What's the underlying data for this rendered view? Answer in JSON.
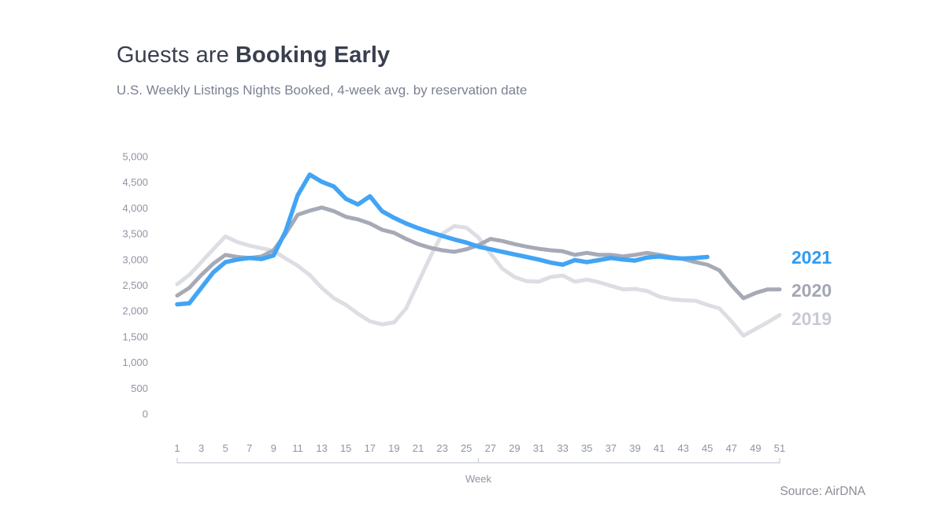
{
  "header": {
    "title_regular": "Guests are ",
    "title_bold": "Booking Early",
    "subtitle": "U.S. Weekly Listings Nights Booked, 4-week avg. by reservation date"
  },
  "source": "Source: AirDNA",
  "chart_data": {
    "type": "line",
    "title": "Guests are Booking Early",
    "subtitle": "U.S. Weekly Listings Nights Booked, 4-week avg. by reservation date",
    "xlabel": "Week",
    "ylabel": "",
    "xlim": [
      1,
      51
    ],
    "ylim": [
      0,
      5000
    ],
    "grid": false,
    "legend_position": "right",
    "x_ticks": [
      1,
      3,
      5,
      7,
      9,
      11,
      13,
      15,
      17,
      19,
      21,
      23,
      25,
      27,
      29,
      31,
      33,
      35,
      37,
      39,
      41,
      43,
      45,
      47,
      49,
      51
    ],
    "y_ticks": [
      {
        "v": 0,
        "label": "0"
      },
      {
        "v": 500,
        "label": "500"
      },
      {
        "v": 1000,
        "label": "1,000"
      },
      {
        "v": 1500,
        "label": "1,500"
      },
      {
        "v": 2000,
        "label": "2,000"
      },
      {
        "v": 2500,
        "label": "2,500"
      },
      {
        "v": 3000,
        "label": "3,000"
      },
      {
        "v": 3500,
        "label": "3,500"
      },
      {
        "v": 4000,
        "label": "4,000"
      },
      {
        "v": 4500,
        "label": "4,500"
      },
      {
        "v": 5000,
        "label": "5,000"
      }
    ],
    "legend": [
      {
        "label": "2021",
        "color": "#2d9cf4"
      },
      {
        "label": "2020",
        "color": "#a3a7b3"
      },
      {
        "label": "2019",
        "color": "#c8cbd4"
      }
    ],
    "series": [
      {
        "name": "2019",
        "color": "#dcdee4",
        "stroke_width": 5,
        "x_start": 1,
        "values": [
          2520,
          2700,
          2950,
          3200,
          3450,
          3340,
          3270,
          3220,
          3170,
          3020,
          2880,
          2700,
          2450,
          2250,
          2120,
          1950,
          1800,
          1740,
          1780,
          2050,
          2550,
          3050,
          3500,
          3650,
          3620,
          3430,
          3120,
          2820,
          2660,
          2580,
          2570,
          2660,
          2690,
          2570,
          2610,
          2560,
          2490,
          2420,
          2430,
          2390,
          2280,
          2230,
          2210,
          2200,
          2120,
          2050,
          1800,
          1520,
          1650,
          1780,
          1920
        ]
      },
      {
        "name": "2020",
        "color": "#a7aab6",
        "stroke_width": 5,
        "x_start": 1,
        "values": [
          2300,
          2450,
          2700,
          2920,
          3090,
          3050,
          3030,
          3060,
          3180,
          3500,
          3870,
          3950,
          4010,
          3940,
          3830,
          3780,
          3700,
          3580,
          3520,
          3400,
          3300,
          3230,
          3180,
          3150,
          3200,
          3280,
          3400,
          3360,
          3300,
          3250,
          3210,
          3180,
          3160,
          3090,
          3130,
          3090,
          3090,
          3060,
          3090,
          3130,
          3090,
          3050,
          3010,
          2950,
          2900,
          2790,
          2500,
          2250,
          2350,
          2420,
          2420
        ]
      },
      {
        "name": "2021",
        "color": "#42a4f5",
        "stroke_width": 5.5,
        "x_start": 1,
        "values": [
          2130,
          2150,
          2450,
          2750,
          2950,
          3000,
          3030,
          3010,
          3080,
          3550,
          4250,
          4650,
          4510,
          4420,
          4180,
          4070,
          4230,
          3940,
          3810,
          3700,
          3610,
          3530,
          3460,
          3390,
          3330,
          3250,
          3200,
          3150,
          3100,
          3050,
          3000,
          2940,
          2900,
          2990,
          2950,
          2990,
          3030,
          3000,
          2980,
          3040,
          3060,
          3030,
          3020,
          3030,
          3050
        ]
      }
    ]
  }
}
